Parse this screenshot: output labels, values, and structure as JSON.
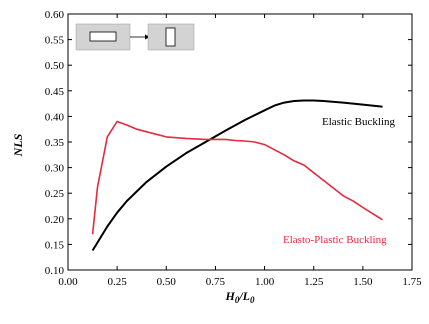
{
  "chart_data": {
    "type": "line",
    "xlabel": "H0/L0",
    "ylabel": "NLS",
    "xlim": [
      0.0,
      1.75
    ],
    "ylim": [
      0.1,
      0.6
    ],
    "x_ticks": [
      "0.00",
      "0.25",
      "0.50",
      "0.75",
      "1.00",
      "1.25",
      "1.50",
      "1.75"
    ],
    "y_ticks": [
      "0.10",
      "0.15",
      "0.20",
      "0.25",
      "0.30",
      "0.35",
      "0.40",
      "0.45",
      "0.50",
      "0.55",
      "0.60"
    ],
    "grid": false,
    "series": [
      {
        "name": "Elastic Buckling",
        "color": "#000000",
        "x": [
          0.125,
          0.2,
          0.25,
          0.3,
          0.4,
          0.5,
          0.6,
          0.7,
          0.8,
          0.9,
          1.0,
          1.05,
          1.1,
          1.15,
          1.2,
          1.25,
          1.3,
          1.4,
          1.5,
          1.6
        ],
        "y": [
          0.138,
          0.185,
          0.212,
          0.235,
          0.272,
          0.302,
          0.328,
          0.35,
          0.372,
          0.393,
          0.412,
          0.421,
          0.427,
          0.43,
          0.431,
          0.431,
          0.43,
          0.427,
          0.423,
          0.419
        ]
      },
      {
        "name": "Elasto-Plastic Buckling",
        "color": "#e8283c",
        "x": [
          0.125,
          0.15,
          0.2,
          0.25,
          0.3,
          0.35,
          0.4,
          0.5,
          0.6,
          0.7,
          0.8,
          0.85,
          0.9,
          0.95,
          1.0,
          1.05,
          1.1,
          1.15,
          1.2,
          1.25,
          1.3,
          1.4,
          1.45,
          1.5,
          1.55,
          1.6
        ],
        "y": [
          0.17,
          0.262,
          0.36,
          0.39,
          0.383,
          0.375,
          0.37,
          0.36,
          0.357,
          0.355,
          0.355,
          0.353,
          0.352,
          0.35,
          0.345,
          0.335,
          0.325,
          0.313,
          0.305,
          0.29,
          0.275,
          0.245,
          0.235,
          0.222,
          0.21,
          0.198
        ]
      }
    ],
    "annotations": {
      "elastic": "Elastic Buckling",
      "elasto_plastic": "Elasto-Plastic Buckling"
    },
    "inset_icon": "rectangle-to-rectangle-transition-icon"
  }
}
